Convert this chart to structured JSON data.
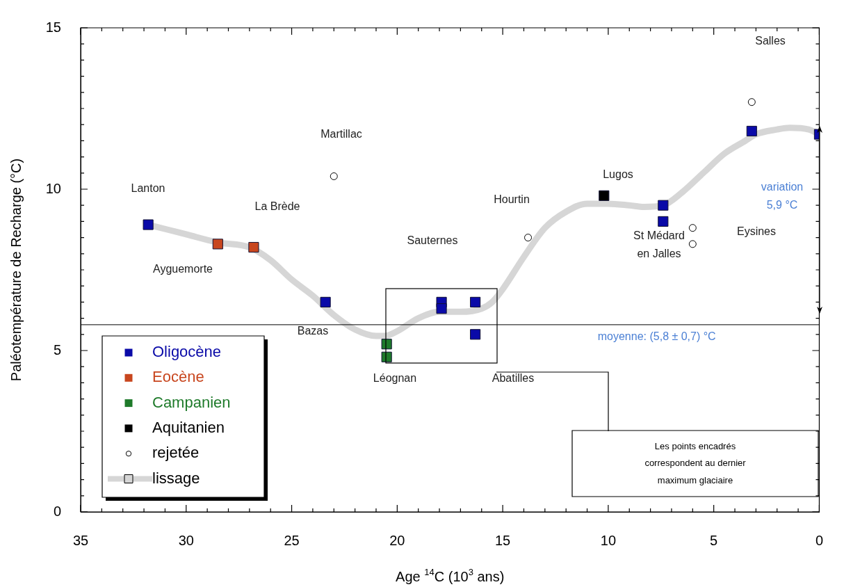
{
  "chart_data": {
    "type": "scatter",
    "xlabel": "Age $^{14}$C (10$^{3}$ ans)",
    "ylabel": "Paléotempérature de Recharge (°C)",
    "xlim": [
      35,
      0
    ],
    "ylim": [
      0,
      15
    ],
    "xticks": [
      35,
      {
        "value": 34,
        "label": null
      },
      {
        "value": 33,
        "label": null
      },
      {
        "value": 32,
        "label": null
      },
      {
        "value": 31,
        "label": null
      },
      30,
      {
        "value": 29,
        "label": null
      },
      {
        "value": 28,
        "label": null
      },
      {
        "value": 27,
        "label": null
      },
      {
        "value": 26,
        "label": null
      },
      25,
      {
        "value": 24,
        "label": null
      },
      {
        "value": 23,
        "label": null
      },
      {
        "value": 22,
        "label": null
      },
      {
        "value": 21,
        "label": null
      },
      20,
      {
        "value": 19,
        "label": null
      },
      {
        "value": 18,
        "label": null
      },
      {
        "value": 17,
        "label": null
      },
      {
        "value": 16,
        "label": null
      },
      15,
      {
        "value": 14,
        "label": null
      },
      {
        "value": 13,
        "label": null
      },
      {
        "value": 12,
        "label": null
      },
      {
        "value": 11,
        "label": null
      },
      10,
      {
        "value": 9,
        "label": null
      },
      {
        "value": 8,
        "label": null
      },
      {
        "value": 7,
        "label": null
      },
      {
        "value": 6,
        "label": null
      },
      5,
      {
        "value": 4,
        "label": null
      },
      {
        "value": 3,
        "label": null
      },
      {
        "value": 2,
        "label": null
      },
      {
        "value": 1,
        "label": null
      },
      0
    ],
    "yticks": [
      0,
      {
        "value": 0.5,
        "label": null
      },
      {
        "value": 1,
        "label": null
      },
      {
        "value": 1.5,
        "label": null
      },
      {
        "value": 2,
        "label": null
      },
      {
        "value": 2.5,
        "label": null
      },
      {
        "value": 3,
        "label": null
      },
      {
        "value": 3.5,
        "label": null
      },
      {
        "value": 4,
        "label": null
      },
      {
        "value": 4.5,
        "label": null
      },
      5,
      {
        "value": 5.5,
        "label": null
      },
      {
        "value": 6,
        "label": null
      },
      {
        "value": 6.5,
        "label": null
      },
      {
        "value": 7,
        "label": null
      },
      {
        "value": 7.5,
        "label": null
      },
      {
        "value": 8,
        "label": null
      },
      {
        "value": 8.5,
        "label": null
      },
      {
        "value": 9,
        "label": null
      },
      {
        "value": 9.5,
        "label": null
      },
      10,
      {
        "value": 10.5,
        "label": null
      },
      {
        "value": 11,
        "label": null
      },
      {
        "value": 11.5,
        "label": null
      },
      {
        "value": 12,
        "label": null
      },
      {
        "value": 12.5,
        "label": null
      },
      {
        "value": 13,
        "label": null
      },
      {
        "value": 13.5,
        "label": null
      },
      {
        "value": 14,
        "label": null
      },
      {
        "value": 14.5,
        "label": null
      },
      15
    ],
    "marker": "square",
    "legend": "bottom left",
    "series": [
      {
        "name": "Oligocène",
        "color": "#0a0aa8",
        "x": [
          31.8,
          23.4,
          17.9,
          17.9,
          16.3,
          16.3,
          7.4,
          7.4,
          3.2,
          0
        ],
        "values": [
          8.9,
          6.5,
          6.5,
          6.3,
          6.5,
          5.5,
          9.5,
          9.0,
          11.8,
          11.7
        ]
      },
      {
        "name": "Eocène",
        "color": "#c8461e",
        "x": [
          28.5,
          26.8
        ],
        "values": [
          8.3,
          8.2
        ]
      },
      {
        "name": "Campanien",
        "color": "#1e7a2a",
        "x": [
          20.5,
          20.5
        ],
        "values": [
          5.2,
          4.8
        ]
      },
      {
        "name": "Aquitanien",
        "color": "#000000",
        "x": [
          10.2
        ],
        "values": [
          9.8
        ]
      },
      {
        "name": "rejetée",
        "color": "#000000",
        "marker": "circle",
        "x": [
          23.0,
          13.8,
          6.0,
          6.0,
          3.2
        ],
        "values": [
          10.4,
          8.5,
          8.8,
          8.3,
          12.7
        ]
      },
      {
        "name": "lissage",
        "type": "line",
        "color": "#d6d6d6",
        "marker": "none",
        "x": [
          31.8,
          30,
          28.5,
          27,
          26,
          25,
          24,
          23,
          22,
          21,
          20.6,
          20,
          19,
          18,
          17,
          16,
          15.5,
          15,
          14,
          13,
          12,
          11,
          10,
          9,
          8.3,
          7.4,
          6.5,
          5.5,
          4.5,
          3.5,
          3,
          2,
          1.4,
          0.5,
          0
        ],
        "values": [
          8.9,
          8.6,
          8.35,
          8.2,
          7.8,
          7.2,
          6.7,
          6.1,
          5.65,
          5.45,
          5.45,
          5.6,
          6.0,
          6.2,
          6.2,
          6.3,
          6.5,
          6.9,
          7.9,
          8.8,
          9.3,
          9.55,
          9.55,
          9.5,
          9.45,
          9.5,
          9.9,
          10.5,
          11.1,
          11.5,
          11.7,
          11.85,
          11.9,
          11.85,
          11.7
        ]
      }
    ],
    "ref_lines": [
      {
        "axis": "y",
        "value": 5.8,
        "label": "moyenne: (5,8 ± 0,7) °C"
      }
    ],
    "annotations": [
      "Lanton",
      "Ayguemorte",
      "La Brède",
      "Martillac",
      "Bazas",
      "Léognan",
      "Sauternes",
      "Abatilles",
      "Hourtin",
      "Lugos",
      "St Médard\nen Jalles",
      "Eysines",
      "Salles",
      "variation\n5,9 °C",
      "Les points encadrés\ncorrespondent au dernier\nmaximum glaciaire"
    ]
  }
}
